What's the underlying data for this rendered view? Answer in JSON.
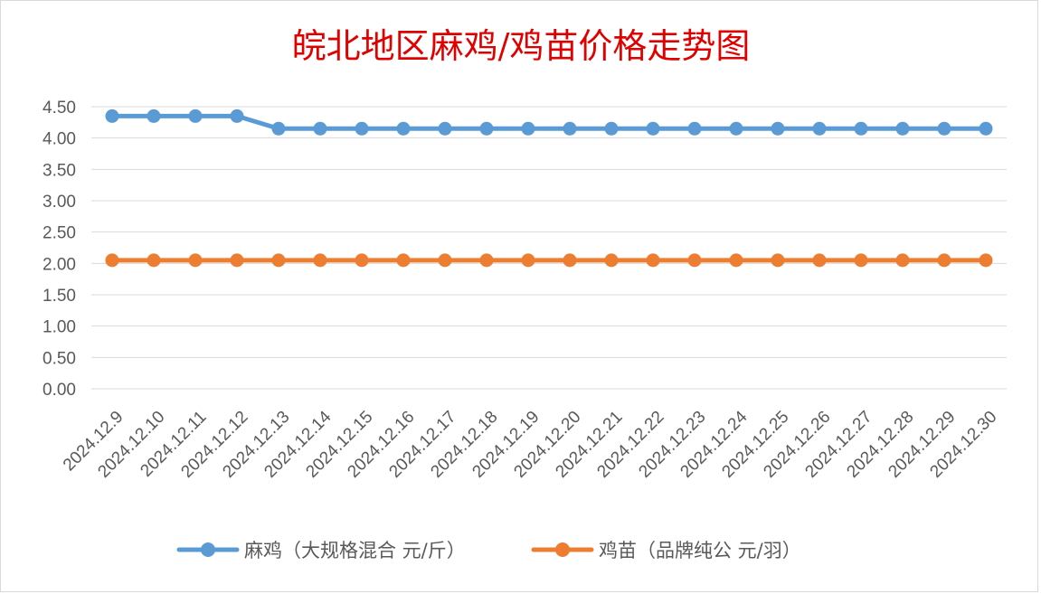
{
  "chart_data": {
    "type": "line",
    "title": "皖北地区麻鸡/鸡苗价格走势图",
    "xlabel": "",
    "ylabel": "",
    "categories": [
      "2024.12.9",
      "2024.12.10",
      "2024.12.11",
      "2024.12.12",
      "2024.12.13",
      "2024.12.14",
      "2024.12.15",
      "2024.12.16",
      "2024.12.17",
      "2024.12.18",
      "2024.12.19",
      "2024.12.20",
      "2024.12.21",
      "2024.12.22",
      "2024.12.23",
      "2024.12.24",
      "2024.12.25",
      "2024.12.26",
      "2024.12.27",
      "2024.12.28",
      "2024.12.29",
      "2024.12.30"
    ],
    "yticks": [
      "0.00",
      "0.50",
      "1.00",
      "1.50",
      "2.00",
      "2.50",
      "3.00",
      "3.50",
      "4.00",
      "4.50"
    ],
    "ylim": [
      0,
      4.5
    ],
    "grid": true,
    "legend_position": "bottom",
    "series": [
      {
        "name": "麻鸡（大规格混合 元/斤）",
        "color": "#5b9bd5",
        "values": [
          4.35,
          4.35,
          4.35,
          4.35,
          4.15,
          4.15,
          4.15,
          4.15,
          4.15,
          4.15,
          4.15,
          4.15,
          4.15,
          4.15,
          4.15,
          4.15,
          4.15,
          4.15,
          4.15,
          4.15,
          4.15,
          4.15
        ]
      },
      {
        "name": "鸡苗（品牌纯公 元/羽）",
        "color": "#ed7d31",
        "values": [
          2.05,
          2.05,
          2.05,
          2.05,
          2.05,
          2.05,
          2.05,
          2.05,
          2.05,
          2.05,
          2.05,
          2.05,
          2.05,
          2.05,
          2.05,
          2.05,
          2.05,
          2.05,
          2.05,
          2.05,
          2.05,
          2.05
        ]
      }
    ],
    "title_color": "#e00000"
  }
}
